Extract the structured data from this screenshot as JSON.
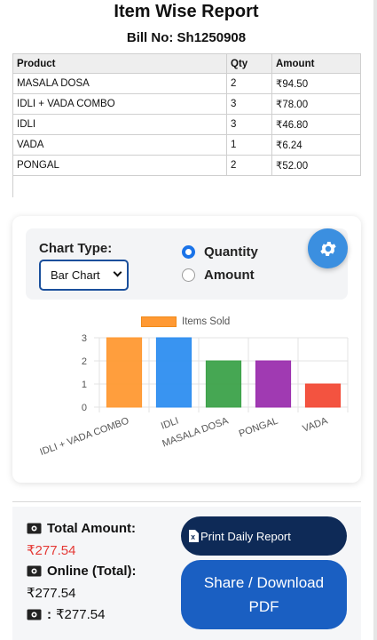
{
  "header": {
    "title": "Item Wise Report",
    "bill_no": "Bill No: Sh1250908"
  },
  "table": {
    "columns": [
      "Product",
      "Qty",
      "Amount"
    ],
    "rows": [
      {
        "product": "MASALA DOSA",
        "qty": "2",
        "amount": "₹94.50"
      },
      {
        "product": "IDLI + VADA COMBO",
        "qty": "3",
        "amount": "₹78.00"
      },
      {
        "product": "IDLI",
        "qty": "3",
        "amount": "₹46.80"
      },
      {
        "product": "VADA",
        "qty": "1",
        "amount": "₹6.24"
      },
      {
        "product": "PONGAL",
        "qty": "2",
        "amount": "₹52.00"
      }
    ]
  },
  "controls": {
    "chart_type_label": "Chart Type:",
    "chart_type_selected": "Bar Chart",
    "radio_quantity": "Quantity",
    "radio_amount": "Amount",
    "selected_metric": "Quantity"
  },
  "chart_data": {
    "type": "bar",
    "categories": [
      "IDLI + VADA COMBO",
      "IDLI",
      "MASALA DOSA",
      "PONGAL",
      "VADA"
    ],
    "series": [
      {
        "name": "Items Sold",
        "values": [
          3,
          3,
          2,
          2,
          1
        ]
      }
    ],
    "bar_colors": [
      "#ff9933",
      "#2e8ef0",
      "#3ca24a",
      "#9b2fae",
      "#f24a36"
    ],
    "ylim": [
      0,
      3
    ],
    "yticks": [
      "0",
      "1",
      "2",
      "3"
    ],
    "legend_position": "top-center",
    "grid": true
  },
  "summary": {
    "total_label": "Total Amount:",
    "total_value": "₹277.54",
    "online_label": "Online (Total):",
    "online_value": "₹277.54",
    "cash_label": ":",
    "cash_value": "₹277.54"
  },
  "buttons": {
    "print": "Print Daily Report",
    "share": "Share / Download PDF"
  },
  "colors": {
    "accent": "#1a73e8",
    "dark_button": "#0e2a57",
    "share_button": "#1a5fc2",
    "total_red": "#e53935"
  }
}
